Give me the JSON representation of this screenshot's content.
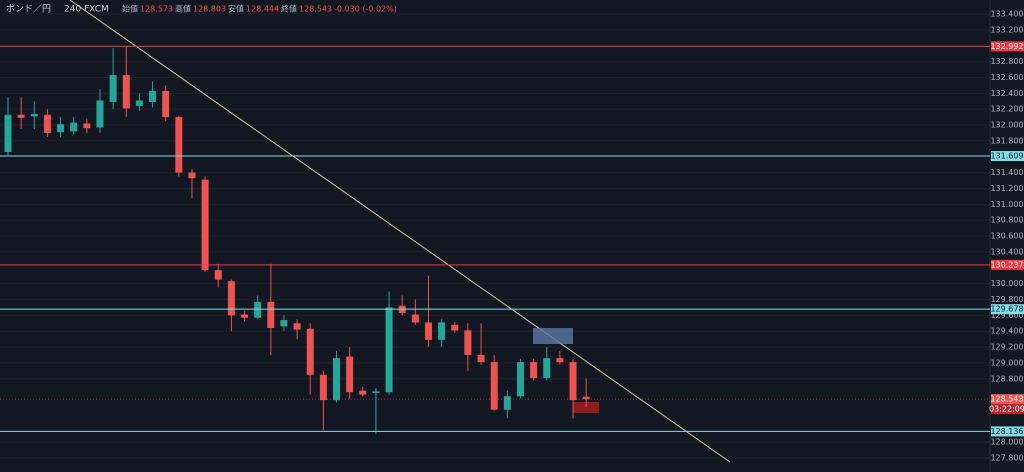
{
  "header": {
    "symbol": "ポンド／円",
    "interval": "240",
    "source": "FXCM",
    "open_label": "始値",
    "open": "128.573",
    "high_label": "高値",
    "high": "128.803",
    "low_label": "安値",
    "low": "128.444",
    "close_label": "終値",
    "close": "128.543",
    "change": "-0.030 (-0.02%)"
  },
  "chart_data": {
    "type": "candlestick",
    "up_color": "#26a69a",
    "down_color": "#ef5350",
    "open": [
      131.66,
      132.13,
      132.11,
      132.13,
      131.91,
      131.92,
      132.02,
      131.97,
      132.29,
      132.63,
      132.24,
      132.29,
      132.43,
      132.1,
      131.4,
      131.31,
      130.17,
      130.03,
      129.61,
      129.57,
      129.77,
      129.46,
      129.5,
      129.43,
      128.85,
      128.53,
      129.08,
      128.65,
      128.62,
      128.63,
      129.72,
      129.61,
      129.51,
      129.29,
      129.48,
      129.41,
      129.1,
      129.01,
      128.41,
      128.58,
      129.01,
      128.81,
      129.06,
      129.01,
      128.573
    ],
    "high": [
      132.35,
      132.35,
      132.3,
      132.2,
      132.1,
      132.1,
      132.08,
      132.45,
      132.97,
      132.99,
      132.4,
      132.55,
      132.5,
      132.12,
      131.45,
      131.35,
      130.25,
      130.05,
      129.65,
      129.85,
      130.25,
      129.6,
      129.55,
      129.5,
      128.9,
      129.15,
      129.2,
      128.7,
      128.68,
      129.9,
      129.85,
      129.8,
      130.1,
      129.55,
      129.52,
      129.5,
      129.5,
      129.1,
      128.65,
      129.05,
      129.05,
      129.2,
      129.15,
      129.05,
      128.803
    ],
    "low": [
      131.62,
      131.95,
      131.95,
      131.85,
      131.85,
      131.88,
      131.9,
      131.9,
      132.2,
      132.1,
      132.18,
      132.22,
      132.05,
      131.35,
      131.08,
      130.15,
      129.95,
      129.4,
      129.52,
      129.55,
      129.1,
      129.4,
      129.3,
      128.6,
      128.15,
      128.5,
      128.55,
      128.58,
      128.1,
      128.6,
      129.6,
      129.48,
      129.2,
      129.2,
      129.38,
      128.9,
      128.98,
      128.4,
      128.3,
      128.55,
      128.78,
      128.78,
      128.98,
      128.3,
      128.444
    ],
    "close": [
      132.13,
      132.09,
      132.14,
      131.9,
      132.01,
      132.03,
      131.96,
      132.31,
      132.63,
      132.21,
      132.31,
      132.43,
      132.1,
      131.4,
      131.33,
      130.17,
      130.05,
      129.6,
      129.57,
      129.77,
      129.44,
      129.54,
      129.42,
      128.85,
      128.53,
      129.06,
      128.63,
      128.6,
      128.64,
      129.7,
      129.63,
      129.51,
      129.29,
      129.51,
      129.41,
      129.1,
      129.01,
      128.41,
      128.58,
      129.01,
      128.81,
      129.06,
      129.01,
      128.53,
      128.543
    ],
    "ylim": [
      127.624,
      133.577
    ],
    "yticks": [
      {
        "value": 133.4,
        "label": "133.400"
      },
      {
        "value": 133.2,
        "label": "133.200"
      },
      {
        "value": 133.0,
        "label": "133.000"
      },
      {
        "value": 132.8,
        "label": "132.800"
      },
      {
        "value": 132.6,
        "label": "132.600"
      },
      {
        "value": 132.4,
        "label": "132.400"
      },
      {
        "value": 132.2,
        "label": "132.200"
      },
      {
        "value": 132.0,
        "label": "132.000"
      },
      {
        "value": 131.8,
        "label": "131.800"
      },
      {
        "value": 131.4,
        "label": "131.400"
      },
      {
        "value": 131.2,
        "label": "131.200"
      },
      {
        "value": 131.0,
        "label": "131.000"
      },
      {
        "value": 130.8,
        "label": "130.800"
      },
      {
        "value": 130.6,
        "label": "130.600"
      },
      {
        "value": 130.4,
        "label": "130.400"
      },
      {
        "value": 130.0,
        "label": "130.000"
      },
      {
        "value": 129.8,
        "label": "129.800"
      },
      {
        "value": 129.6,
        "label": "129.600"
      },
      {
        "value": 129.4,
        "label": "129.400"
      },
      {
        "value": 129.2,
        "label": "129.200"
      },
      {
        "value": 129.0,
        "label": "129.000"
      },
      {
        "value": 128.8,
        "label": "128.800"
      },
      {
        "value": 128.0,
        "label": "128.000"
      },
      {
        "value": 127.8,
        "label": "127.800"
      }
    ],
    "levels": [
      {
        "value": 132.992,
        "color": "#f23645"
      },
      {
        "value": 131.609,
        "color": "#80deea"
      },
      {
        "value": 130.237,
        "color": "#f23645"
      },
      {
        "value": 129.678,
        "color": "#80deea"
      },
      {
        "value": 128.136,
        "color": "#80deea"
      }
    ],
    "last_price": 128.543,
    "countdown": "03:22:09",
    "grid": true
  }
}
